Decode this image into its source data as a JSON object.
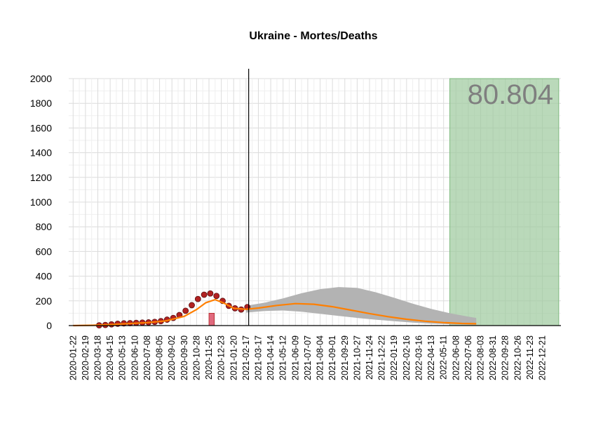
{
  "chart_data": {
    "type": "line",
    "title": "Ukraine - Mortes/Deaths",
    "xlabel": "",
    "ylabel": "",
    "ylim": [
      0,
      2000
    ],
    "yticks": [
      0,
      200,
      400,
      600,
      800,
      1000,
      1200,
      1400,
      1600,
      1800,
      2000
    ],
    "xlim": [
      "2020-01-12",
      "2023-02-01"
    ],
    "xticks": [
      "2020-01-22",
      "2020-02-19",
      "2020-03-18",
      "2020-04-15",
      "2020-05-13",
      "2020-06-10",
      "2020-07-08",
      "2020-08-05",
      "2020-09-02",
      "2020-09-30",
      "2020-10-28",
      "2020-11-25",
      "2020-12-23",
      "2021-01-20",
      "2021-02-17",
      "2021-03-17",
      "2021-04-14",
      "2021-05-12",
      "2021-06-09",
      "2021-07-07",
      "2021-08-04",
      "2021-09-01",
      "2021-09-29",
      "2021-10-27",
      "2021-11-24",
      "2021-12-22",
      "2022-01-19",
      "2022-02-16",
      "2022-03-16",
      "2022-04-13",
      "2022-05-11",
      "2022-06-08",
      "2022-07-06",
      "2022-08-03",
      "2022-08-31",
      "2022-09-28",
      "2022-10-26",
      "2022-11-23",
      "2022-12-21"
    ],
    "grid": true,
    "vline_date": "2021-02-23",
    "total_label": "80.804",
    "highlight_region": {
      "x_start": "2022-05-25",
      "x_end": "2023-01-27",
      "y_top": 2000,
      "color": "#9cc99c"
    },
    "observed_daily_points": {
      "color": "#b22222",
      "x": [
        "2020-03-21",
        "2020-04-04",
        "2020-04-18",
        "2020-05-02",
        "2020-05-16",
        "2020-05-30",
        "2020-06-13",
        "2020-06-27",
        "2020-07-11",
        "2020-07-25",
        "2020-08-08",
        "2020-08-22",
        "2020-09-05",
        "2020-09-19",
        "2020-10-03",
        "2020-10-17",
        "2020-10-31",
        "2020-11-14",
        "2020-11-28",
        "2020-12-12",
        "2020-12-26",
        "2021-01-09",
        "2021-01-23",
        "2021-02-06",
        "2021-02-20"
      ],
      "y": [
        2,
        5,
        10,
        15,
        18,
        20,
        22,
        24,
        26,
        30,
        36,
        48,
        62,
        85,
        120,
        165,
        215,
        250,
        260,
        240,
        200,
        160,
        140,
        130,
        150
      ]
    },
    "observed_bar": {
      "x_start": "2020-11-25",
      "x_end": "2020-12-07",
      "value": 100,
      "color": "#e06a7e"
    },
    "series": [
      {
        "name": "",
        "color": "#ff7f00",
        "x": [
          "2020-01-22",
          "2020-03-04",
          "2020-04-15",
          "2020-05-27",
          "2020-07-08",
          "2020-08-19",
          "2020-09-30",
          "2020-10-28",
          "2020-11-18",
          "2020-12-09",
          "2020-12-30",
          "2021-01-20",
          "2021-02-17",
          "2021-03-17",
          "2021-04-28",
          "2021-06-09",
          "2021-07-21",
          "2021-09-01",
          "2021-10-13",
          "2021-11-24",
          "2022-01-05",
          "2022-02-16",
          "2022-03-30",
          "2022-05-11",
          "2022-06-22",
          "2022-07-24"
        ],
        "y": [
          0,
          2,
          8,
          16,
          24,
          38,
          75,
          130,
          185,
          210,
          180,
          140,
          132,
          142,
          163,
          178,
          173,
          153,
          125,
          97,
          72,
          51,
          35,
          24,
          17,
          15
        ]
      }
    ],
    "forecast_band": {
      "color": "#b3b3b3",
      "x": [
        "2021-02-17",
        "2021-03-31",
        "2021-05-12",
        "2021-06-23",
        "2021-08-04",
        "2021-09-15",
        "2021-10-27",
        "2021-12-08",
        "2022-01-19",
        "2022-03-02",
        "2022-04-13",
        "2022-05-25",
        "2022-07-06",
        "2022-07-24"
      ],
      "lower": [
        105,
        118,
        122,
        112,
        95,
        78,
        62,
        48,
        35,
        24,
        16,
        11,
        7,
        6
      ],
      "upper": [
        160,
        185,
        220,
        262,
        295,
        312,
        305,
        270,
        225,
        178,
        135,
        100,
        72,
        62
      ]
    }
  }
}
